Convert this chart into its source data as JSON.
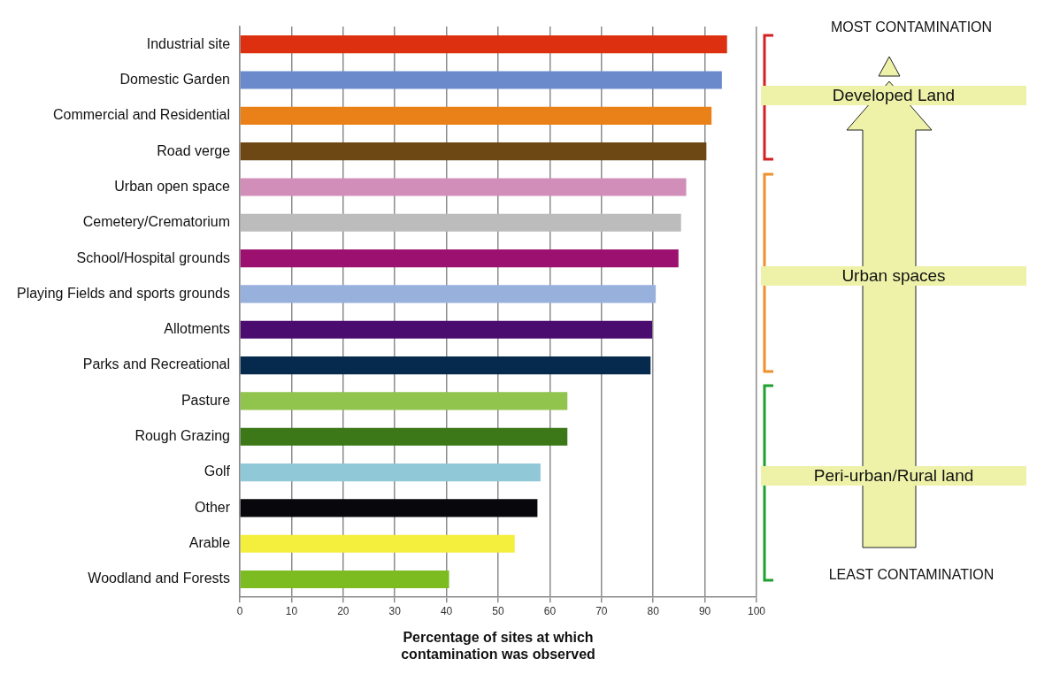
{
  "chart_data": {
    "type": "bar",
    "orientation": "horizontal",
    "xlabel": "Percentage of sites at which contamination was observed",
    "categories": [
      "Industrial site",
      "Domestic Garden",
      "Commercial and Residential",
      "Road verge",
      "Urban open space",
      "Cemetery/Crematorium",
      "School/Hospital grounds",
      "Playing Fields and sports grounds",
      "Allotments",
      "Parks and Recreational",
      "Pasture",
      "Rough Grazing",
      "Golf",
      "Other",
      "Arable",
      "Woodland and Forests"
    ],
    "values": [
      94.3,
      93.3,
      91.3,
      90.3,
      86.4,
      85.4,
      84.9,
      80.5,
      79.8,
      79.5,
      63.4,
      63.4,
      58.2,
      57.6,
      53.2,
      40.5
    ],
    "colors": [
      "#dc3010",
      "#6a8acc",
      "#ea8018",
      "#6e4814",
      "#d08eb8",
      "#bcbcbc",
      "#9c1070",
      "#98b0dc",
      "#4a0c6e",
      "#062a4e",
      "#90c44c",
      "#3c7818",
      "#90c8d8",
      "#08080c",
      "#f4ee3c",
      "#7cbc20"
    ],
    "xlim": [
      0,
      100
    ],
    "xticks": [
      0,
      10,
      20,
      30,
      40,
      50,
      60,
      70,
      80,
      90,
      100
    ],
    "grid": "x",
    "legend": false,
    "annotations": [
      "MOST CONTAMINATION",
      "Developed Land",
      "Urban spaces",
      "Peri-urban/Rural land",
      "LEAST CONTAMINATION"
    ]
  }
}
